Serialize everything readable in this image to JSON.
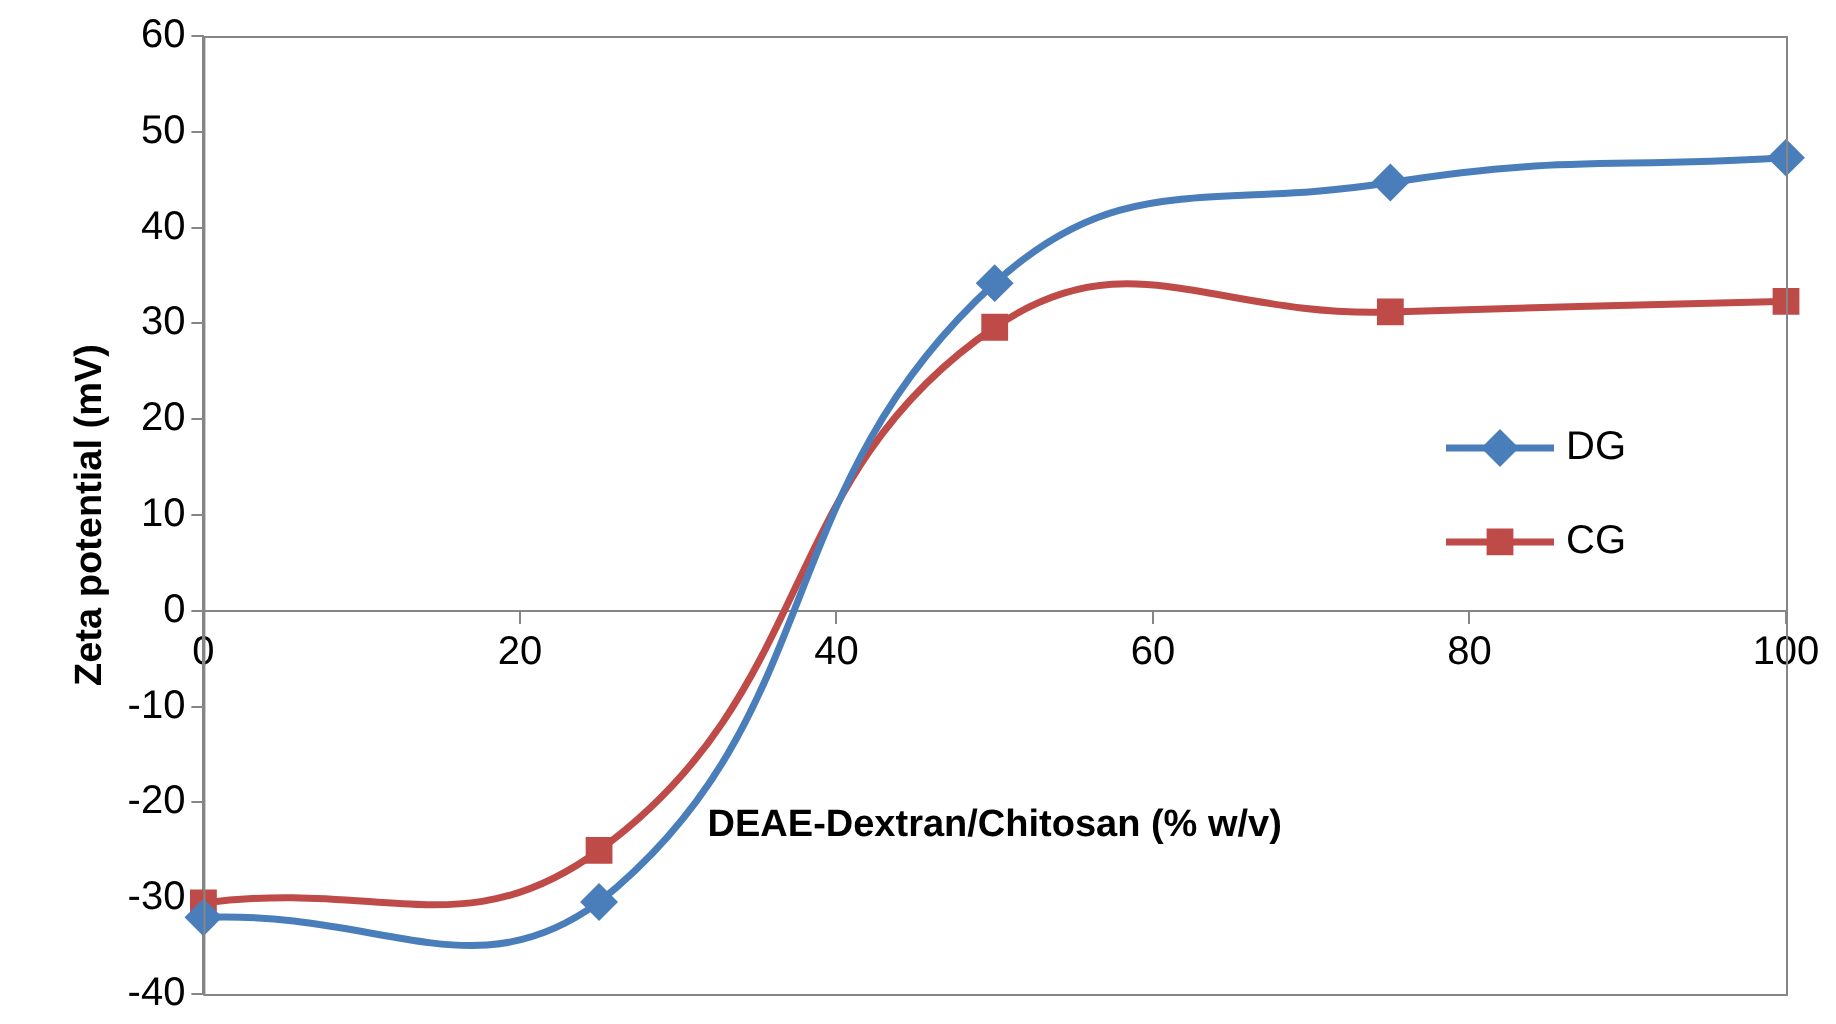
{
  "chart_data": {
    "type": "line",
    "xlabel": "DEAE-Dextran/Chitosan (% w/v)",
    "ylabel": "Zeta potential (mV)",
    "x": [
      0,
      25,
      50,
      75,
      100
    ],
    "series": [
      {
        "name": "DG",
        "color": "#4a7ebb",
        "marker": "diamond",
        "values": [
          -32,
          -30.4,
          34.2,
          44.7,
          47.3
        ]
      },
      {
        "name": "CG",
        "color": "#be4b48",
        "marker": "square",
        "values": [
          -30.5,
          -25,
          29.6,
          31.2,
          32.3
        ]
      }
    ],
    "xlim": [
      0,
      100
    ],
    "xticks": [
      0,
      20,
      40,
      60,
      80,
      100
    ],
    "ylim": [
      -40,
      60
    ],
    "yticks": [
      -40,
      -30,
      -20,
      -10,
      0,
      10,
      20,
      30,
      40,
      50,
      60
    ],
    "grid": false,
    "legend": "right"
  }
}
